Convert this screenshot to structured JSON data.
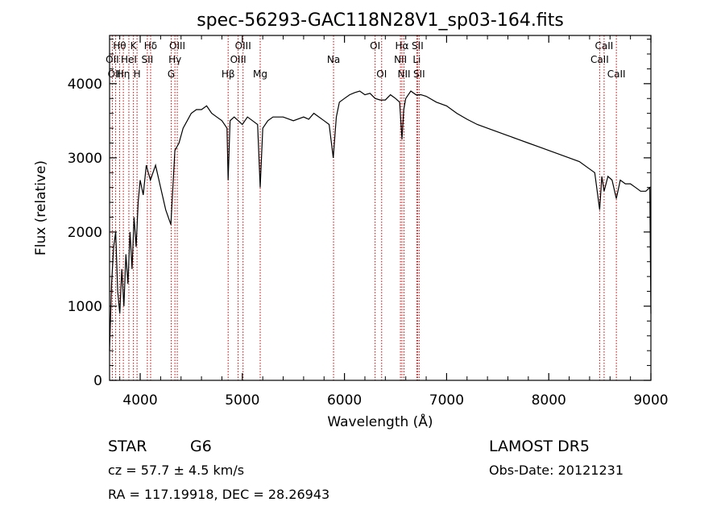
{
  "chart_data": {
    "type": "line",
    "title": "spec-56293-GAC118N28V1_sp03-164.fits",
    "xlabel": "Wavelength (Å)",
    "ylabel": "Flux (relative)",
    "xlim": [
      3700,
      9000
    ],
    "ylim": [
      0,
      4650
    ],
    "xticks": [
      4000,
      5000,
      6000,
      7000,
      8000,
      9000
    ],
    "yticks": [
      0,
      1000,
      2000,
      3000,
      4000
    ],
    "grid": false,
    "line_color": "#000000",
    "marker_color": "#cc0000",
    "series": [
      {
        "x": [
          3700,
          3720,
          3740,
          3760,
          3780,
          3800,
          3820,
          3840,
          3860,
          3880,
          3900,
          3920,
          3940,
          3960,
          3980,
          4000,
          4030,
          4060,
          4100,
          4150,
          4200,
          4250,
          4300,
          4320,
          4340,
          4380,
          4420,
          4460,
          4500,
          4550,
          4600,
          4650,
          4700,
          4750,
          4800,
          4850,
          4861,
          4880,
          4920,
          4960,
          5000,
          5050,
          5100,
          5150,
          5175,
          5200,
          5250,
          5300,
          5400,
          5500,
          5600,
          5650,
          5700,
          5800,
          5850,
          5890,
          5920,
          5950,
          6000,
          6050,
          6100,
          6150,
          6200,
          6250,
          6300,
          6350,
          6400,
          6450,
          6500,
          6540,
          6563,
          6580,
          6600,
          6650,
          6700,
          6750,
          6800,
          6900,
          7000,
          7100,
          7200,
          7300,
          7400,
          7500,
          7600,
          7700,
          7800,
          7900,
          8000,
          8100,
          8200,
          8300,
          8400,
          8450,
          8498,
          8520,
          8542,
          8580,
          8620,
          8662,
          8700,
          8750,
          8800,
          8850,
          8900,
          8950,
          8990,
          9000
        ],
        "y": [
          400,
          1300,
          1800,
          2000,
          1200,
          900,
          1500,
          1000,
          1700,
          1300,
          2000,
          1500,
          2200,
          1800,
          2400,
          2700,
          2500,
          2900,
          2700,
          2900,
          2600,
          2300,
          2100,
          2600,
          3100,
          3200,
          3400,
          3500,
          3600,
          3650,
          3650,
          3700,
          3600,
          3550,
          3500,
          3400,
          2700,
          3500,
          3550,
          3500,
          3450,
          3550,
          3500,
          3450,
          2600,
          3400,
          3500,
          3550,
          3550,
          3500,
          3550,
          3520,
          3600,
          3500,
          3450,
          3000,
          3550,
          3750,
          3800,
          3850,
          3880,
          3900,
          3850,
          3870,
          3800,
          3780,
          3780,
          3850,
          3800,
          3750,
          3250,
          3650,
          3800,
          3900,
          3850,
          3850,
          3830,
          3750,
          3700,
          3600,
          3520,
          3450,
          3400,
          3350,
          3300,
          3250,
          3200,
          3150,
          3100,
          3050,
          3000,
          2950,
          2850,
          2800,
          2300,
          2750,
          2550,
          2750,
          2700,
          2450,
          2700,
          2650,
          2650,
          2600,
          2550,
          2550,
          2600,
          900
        ]
      }
    ],
    "annotations": [
      {
        "label": "Hθ",
        "x": 3798,
        "row": 0
      },
      {
        "label": "OII",
        "x": 3727,
        "row": 1
      },
      {
        "label": "OIII",
        "x": 3760,
        "row": 2
      },
      {
        "label": "Hη",
        "x": 3835,
        "row": 2
      },
      {
        "label": "K",
        "x": 3934,
        "row": 0
      },
      {
        "label": "HeI",
        "x": 3889,
        "row": 1
      },
      {
        "label": "H",
        "x": 3969,
        "row": 2
      },
      {
        "label": "Hδ",
        "x": 4102,
        "row": 0
      },
      {
        "label": "SII",
        "x": 4070,
        "row": 1
      },
      {
        "label": "OIII",
        "x": 4363,
        "row": 0
      },
      {
        "label": "Hγ",
        "x": 4340,
        "row": 1
      },
      {
        "label": "G",
        "x": 4304,
        "row": 2
      },
      {
        "label": "OIII",
        "x": 5007,
        "row": 0
      },
      {
        "label": "OIII",
        "x": 4959,
        "row": 1
      },
      {
        "label": "Hβ",
        "x": 4861,
        "row": 2
      },
      {
        "label": "Mg",
        "x": 5175,
        "row": 2
      },
      {
        "label": "Na",
        "x": 5893,
        "row": 1
      },
      {
        "label": "OI",
        "x": 6300,
        "row": 0
      },
      {
        "label": "OI",
        "x": 6364,
        "row": 2
      },
      {
        "label": "Hα",
        "x": 6563,
        "row": 0
      },
      {
        "label": "NII",
        "x": 6548,
        "row": 1
      },
      {
        "label": "NII",
        "x": 6583,
        "row": 2
      },
      {
        "label": "SII",
        "x": 6716,
        "row": 0
      },
      {
        "label": "Li",
        "x": 6708,
        "row": 1
      },
      {
        "label": "SII",
        "x": 6731,
        "row": 2
      },
      {
        "label": "CaII",
        "x": 8542,
        "row": 0
      },
      {
        "label": "CaII",
        "x": 8498,
        "row": 1
      },
      {
        "label": "CaII",
        "x": 8662,
        "row": 2
      }
    ]
  },
  "info": {
    "object_class": "STAR",
    "subclass": "G6",
    "redshift": "cz = 57.7 ± 4.5 km/s",
    "coords": "RA = 117.19918, DEC =  28.26943",
    "survey": "LAMOST DR5",
    "obs_date": "Obs-Date: 20121231"
  }
}
